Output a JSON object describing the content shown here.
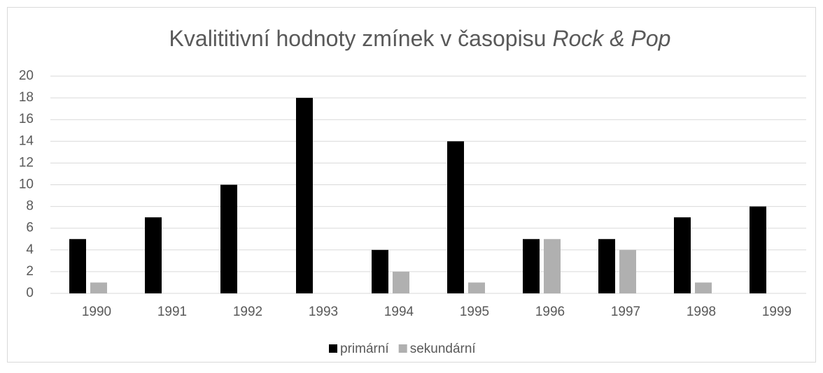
{
  "chart_data": {
    "type": "bar",
    "title": [
      "Kvalititivní hodnoty zmínek v časopisu",
      "Rock & Pop"
    ],
    "categories": [
      "1990",
      "1991",
      "1992",
      "1993",
      "1994",
      "1995",
      "1996",
      "1997",
      "1998",
      "1999"
    ],
    "series": [
      {
        "name": "primární",
        "color": "#000000",
        "values": [
          5,
          7,
          10,
          18,
          4,
          14,
          5,
          5,
          7,
          8
        ]
      },
      {
        "name": "sekundární",
        "color": "#b0b0b0",
        "values": [
          1,
          0,
          0,
          0,
          2,
          1,
          5,
          4,
          1,
          0
        ]
      }
    ],
    "ylim": [
      0,
      20
    ],
    "yticks": [
      0,
      2,
      4,
      6,
      8,
      10,
      12,
      14,
      16,
      18,
      20
    ],
    "grid": true,
    "legend": "bottom"
  }
}
